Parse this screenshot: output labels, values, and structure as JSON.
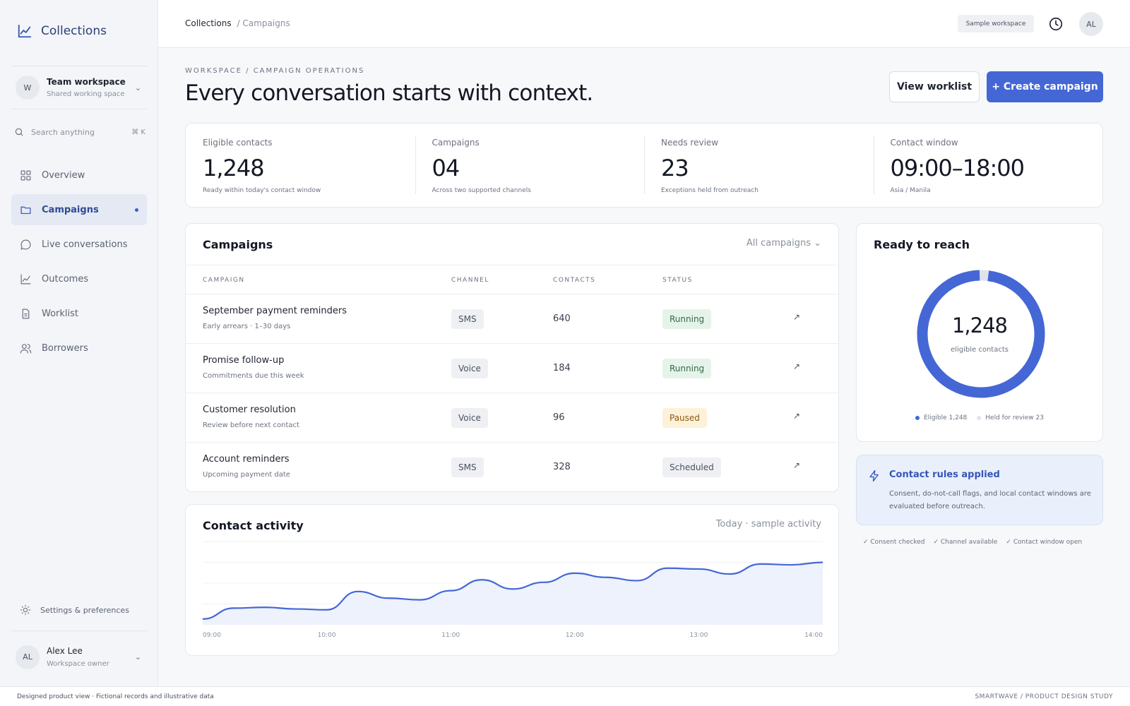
{
  "brand": {
    "name": "Collections",
    "icon": "line-chart-icon"
  },
  "workspace": {
    "avatar": "W",
    "title": "Team workspace",
    "subtitle": "Shared working space"
  },
  "search": {
    "placeholder": "Search anything",
    "shortcut": "⌘ K"
  },
  "nav": [
    {
      "label": "Overview",
      "icon": "grid-icon"
    },
    {
      "label": "Campaigns",
      "icon": "folder-icon",
      "active": true
    },
    {
      "label": "Live conversations",
      "icon": "chat-icon"
    },
    {
      "label": "Outcomes",
      "icon": "line-chart-icon"
    },
    {
      "label": "Worklist",
      "icon": "document-icon"
    },
    {
      "label": "Borrowers",
      "icon": "users-icon"
    }
  ],
  "settings": {
    "label": "Settings & preferences",
    "icon": "sun-icon"
  },
  "user": {
    "initials": "AL",
    "name": "Alex Lee",
    "role": "Workspace owner"
  },
  "topbar": {
    "breadcrumb": [
      "Collections",
      "/ Campaigns"
    ],
    "workspace_badge": "Sample workspace",
    "avatar": "AL"
  },
  "header": {
    "eyebrow": "WORKSPACE / CAMPAIGN OPERATIONS",
    "title": "Every conversation starts with context.",
    "secondary_button": "View worklist",
    "primary_button": "+ Create campaign"
  },
  "stats": [
    {
      "label": "Eligible contacts",
      "value": "1,248",
      "sub": "Ready within today's contact window"
    },
    {
      "label": "Campaigns",
      "value": "04",
      "sub": "Across two supported channels"
    },
    {
      "label": "Needs review",
      "value": "23",
      "sub": "Exceptions held from outreach"
    },
    {
      "label": "Contact window",
      "value": "09:00–18:00",
      "sub": "Asia / Manila"
    }
  ],
  "campaigns": {
    "title": "Campaigns",
    "filter": "All campaigns ⌄",
    "columns": [
      "CAMPAIGN",
      "CHANNEL",
      "CONTACTS",
      "STATUS"
    ],
    "rows": [
      {
        "name": "September payment reminders",
        "sub": "Early arrears · 1–30 days",
        "channel": "SMS",
        "contacts": "640",
        "status": "Running",
        "arrow": "↗"
      },
      {
        "name": "Promise follow-up",
        "sub": "Commitments due this week",
        "channel": "Voice",
        "contacts": "184",
        "status": "Running",
        "arrow": "↗"
      },
      {
        "name": "Customer resolution",
        "sub": "Review before next contact",
        "channel": "Voice",
        "contacts": "96",
        "status": "Paused",
        "arrow": "↗"
      },
      {
        "name": "Account reminders",
        "sub": "Upcoming payment date",
        "channel": "SMS",
        "contacts": "328",
        "status": "Scheduled",
        "arrow": "↗"
      }
    ]
  },
  "status_colors": {
    "Running": {
      "bg": "#e6f3ea",
      "fg": "#2f6b45"
    },
    "Paused": {
      "bg": "#fdf1d9",
      "fg": "#8a5a12"
    },
    "Scheduled": {
      "bg": "#eef0f3",
      "fg": "#4a5160"
    }
  },
  "reach": {
    "title": "Ready to reach",
    "value": "1,248",
    "label": "eligible contacts",
    "legend": [
      "Eligible 1,248",
      "Held for review 23"
    ],
    "eligible": 1248,
    "held": 23,
    "colors": {
      "eligible": "#4467d5",
      "held": "#dfe3ea"
    }
  },
  "rules": {
    "title": "Contact rules applied",
    "body": "Consent, do-not-call flags, and local contact windows are evaluated before outreach.",
    "checks": [
      "✓ Consent checked",
      "✓ Channel available",
      "✓ Contact window open"
    ]
  },
  "activity": {
    "title": "Contact activity",
    "meta": "Today · sample activity"
  },
  "chart_data": {
    "type": "area",
    "title": "Contact activity",
    "x": [
      "09:00",
      "09:15",
      "09:30",
      "09:45",
      "10:00",
      "10:15",
      "10:30",
      "10:45",
      "11:00",
      "11:15",
      "11:30",
      "11:45",
      "12:00",
      "12:15",
      "12:30",
      "12:45",
      "13:00",
      "13:15",
      "13:30",
      "13:45",
      "14:00"
    ],
    "tick_labels": [
      "09:00",
      "10:00",
      "11:00",
      "12:00",
      "13:00",
      "14:00"
    ],
    "series": [
      {
        "values": [
          7,
          20,
          21,
          19,
          18,
          40,
          32,
          30,
          41,
          54,
          43,
          51,
          62,
          57,
          53,
          68,
          67,
          61,
          73,
          72,
          75
        ]
      }
    ],
    "ylim": [
      0,
      100
    ],
    "grid": true,
    "color": "#4467d5"
  },
  "footer": {
    "left": "Designed product view · Fictional records and illustrative data",
    "right": "SMARTWAVE / PRODUCT DESIGN STUDY"
  }
}
